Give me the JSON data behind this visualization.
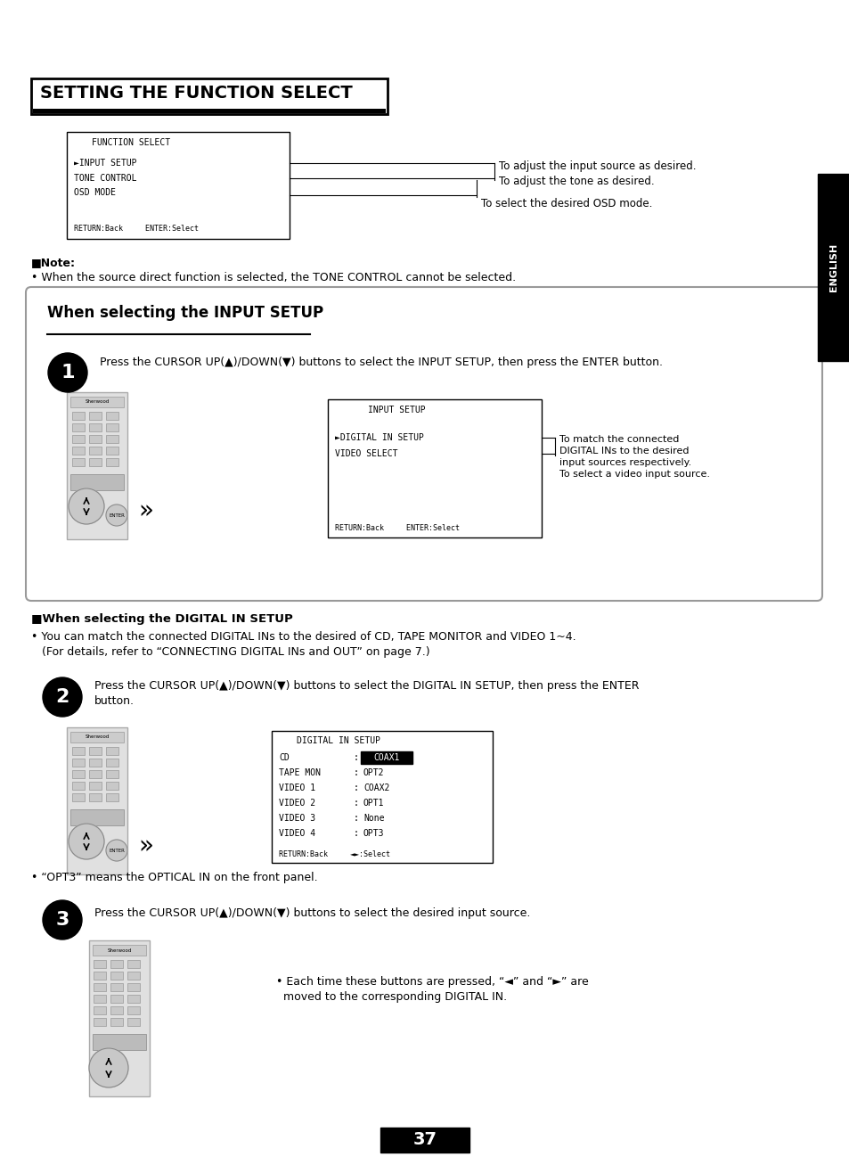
{
  "page_bg": "#ffffff",
  "page_num": "37",
  "title": "SETTING THE FUNCTION SELECT",
  "right_tab_text": "ENGLISH",
  "func_select_box": {
    "title": "FUNCTION SELECT",
    "lines": [
      "►INPUT SETUP",
      "TONE CONTROL",
      "OSD MODE"
    ],
    "footer": "RETURN:Back     ENTER:Select"
  },
  "func_select_annotations": [
    "To adjust the input source as desired.",
    "To adjust the tone as desired.",
    "To select the desired OSD mode."
  ],
  "note_title": "■Note:",
  "note_text": "• When the source direct function is selected, the TONE CONTROL cannot be selected.",
  "section_box_title": "When selecting the INPUT SETUP",
  "step1_text": "Press the CURSOR UP(▲)/DOWN(▼) buttons to select the INPUT SETUP, then press the ENTER button.",
  "input_setup_box": {
    "title": "INPUT SETUP",
    "lines": [
      "►DIGITAL IN SETUP",
      "VIDEO SELECT"
    ],
    "footer": "RETURN:Back     ENTER:Select"
  },
  "input_setup_annotations": [
    "To match the connected\nDIGITAL INs to the desired\ninput sources respectively.",
    "To select a video input source."
  ],
  "digital_note_title": "■When selecting the DIGITAL IN SETUP",
  "digital_note_text1": "• You can match the connected DIGITAL INs to the desired of CD, TAPE MONITOR and VIDEO 1~4.",
  "digital_note_text2": "   (For details, refer to “CONNECTING DIGITAL INs and OUT” on page 7.)",
  "step2_text_1": "Press the CURSOR UP(▲)/DOWN(▼) buttons to select the DIGITAL IN SETUP, then press the ENTER",
  "step2_text_2": "button.",
  "digital_in_box": {
    "title": "DIGITAL IN SETUP",
    "rows": [
      [
        "CD",
        ":",
        "COAX1"
      ],
      [
        "TAPE MON",
        ":",
        "OPT2"
      ],
      [
        "VIDEO 1",
        ":",
        "COAX2"
      ],
      [
        "VIDEO 2",
        ":",
        "OPT1"
      ],
      [
        "VIDEO 3",
        ":",
        "None"
      ],
      [
        "VIDEO 4",
        ":",
        "OPT3"
      ]
    ],
    "footer": "RETURN:Back     ◄►:Select"
  },
  "opt3_note": "• “OPT3” means the OPTICAL IN on the front panel.",
  "step3_text": "Press the CURSOR UP(▲)/DOWN(▼) buttons to select the desired input source.",
  "step3_note_1": "• Each time these buttons are pressed, “◄” and “►” are",
  "step3_note_2": "  moved to the corresponding DIGITAL IN."
}
